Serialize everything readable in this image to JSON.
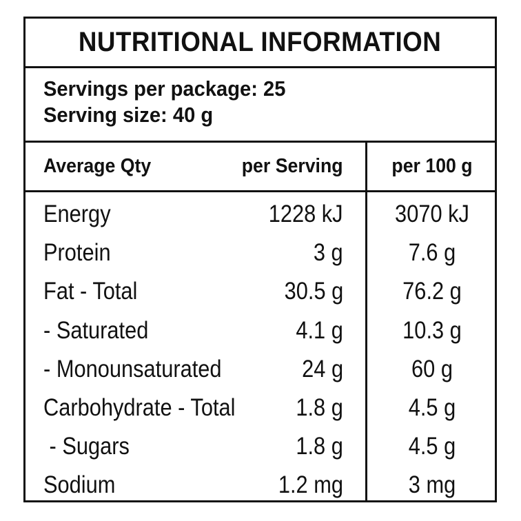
{
  "panel": {
    "title": "NUTRITIONAL INFORMATION",
    "servings_per_package": "Servings per package: 25",
    "serving_size": "Serving size: 40 g"
  },
  "table": {
    "headers": {
      "label": "Average Qty",
      "per_serving": "per Serving",
      "per_100g": "per 100 g"
    },
    "rows": [
      {
        "label": "Energy",
        "per_serving": "1228 kJ",
        "per_100g": "3070 kJ"
      },
      {
        "label": "Protein",
        "per_serving": "3 g",
        "per_100g": "7.6 g"
      },
      {
        "label": "Fat - Total",
        "per_serving": "30.5 g",
        "per_100g": "76.2 g"
      },
      {
        "label": "- Saturated",
        "per_serving": "4.1 g",
        "per_100g": "10.3 g"
      },
      {
        "label": "- Monounsaturated",
        "per_serving": "24 g",
        "per_100g": "60 g"
      },
      {
        "label": "Carbohydrate - Total",
        "per_serving": "1.8 g",
        "per_100g": "4.5 g"
      },
      {
        "label": " - Sugars",
        "per_serving": "1.8 g",
        "per_100g": "4.5 g"
      },
      {
        "label": "Sodium",
        "per_serving": "1.2 mg",
        "per_100g": "3 mg"
      }
    ]
  }
}
